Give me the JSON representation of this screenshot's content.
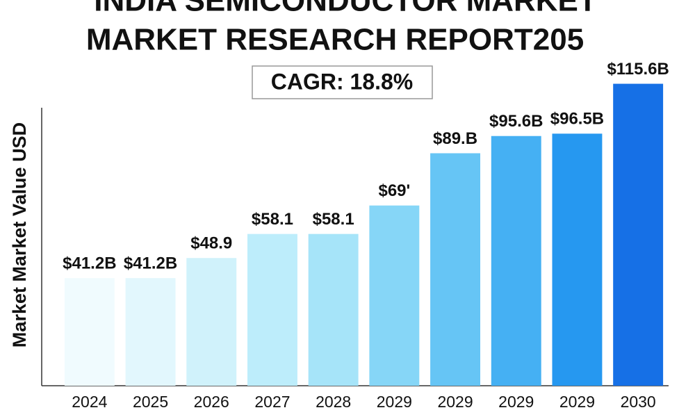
{
  "chart_data": {
    "type": "bar",
    "title": [
      "INDIA SEMICONDUCTOR MARKET",
      "MARKET RESEARCH REPORT205"
    ],
    "subtitle": "CAGR: 18.8%",
    "y_label": "Market Market Value USD",
    "categories": [
      "2024",
      "2025",
      "2026",
      "2027",
      "2028",
      "2029",
      "2029",
      "2029",
      "2029",
      "2030"
    ],
    "values": [
      41.2,
      41.2,
      48.9,
      58.1,
      58.1,
      69,
      89,
      95.6,
      96.5,
      115.6
    ],
    "value_labels": [
      "$41.2B",
      "$41.2B",
      "$48.9",
      "$58.1",
      "$58.1",
      "$69'",
      "$89.B",
      "$95.6B",
      "$96.5B",
      "$115.6B"
    ],
    "colors": [
      "#f0fbfe",
      "#e2f7fd",
      "#d0f2fb",
      "#bdedfb",
      "#a6e4f9",
      "#86d6f7",
      "#66c5f5",
      "#45b0f3",
      "#2698f0",
      "#1670e6"
    ],
    "ylim": [
      0,
      120
    ]
  }
}
